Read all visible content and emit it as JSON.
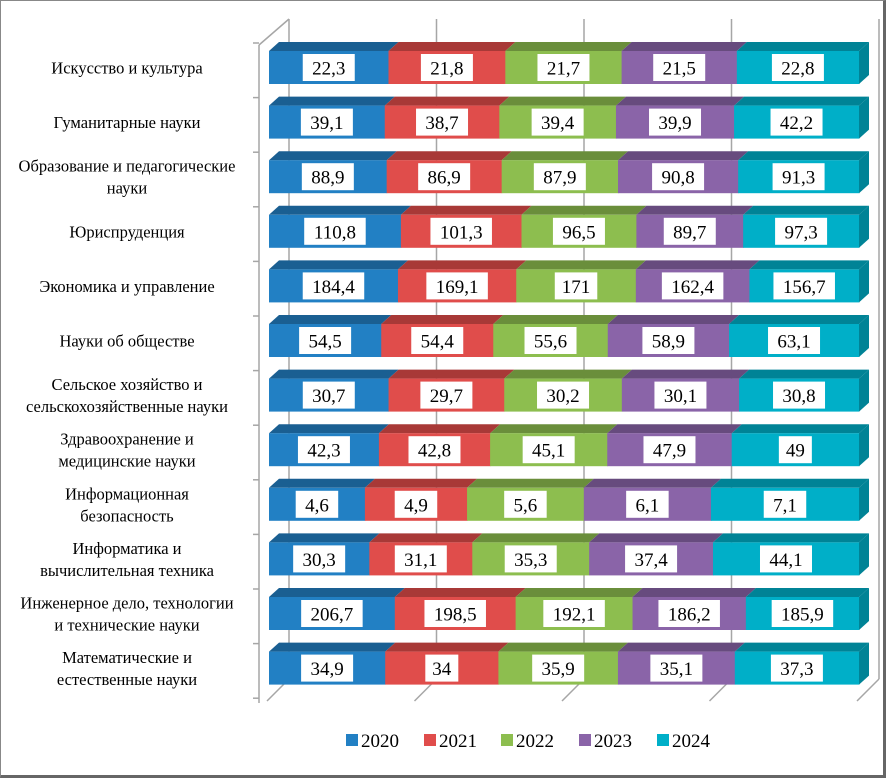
{
  "chart_data": {
    "type": "bar",
    "stacked": "percent",
    "orientation": "horizontal",
    "title": "",
    "xlabel": "",
    "ylabel": "",
    "xlim": [
      0,
      100
    ],
    "grid": true,
    "legend_position": "bottom",
    "categories": [
      "Искусство и культура",
      "Гуманитарные науки",
      "Образование и педагогические науки",
      "Юриспруденция",
      "Экономика и управление",
      "Науки об обществе",
      "Сельское хозяйство и сельскохозяйственные науки",
      "Здравоохранение и медицинские науки",
      "Информационная безопасность",
      "Информатика и вычислительная техника",
      "Инженерное дело, технологии и технические науки",
      "Математические и естественные науки"
    ],
    "category_lines": [
      [
        "Искусство и культура"
      ],
      [
        "Гуманитарные науки"
      ],
      [
        "Образование и педагогические",
        "науки"
      ],
      [
        "Юриспруденция"
      ],
      [
        "Экономика и управление"
      ],
      [
        "Науки об обществе"
      ],
      [
        "Сельское хозяйство и",
        "сельскохозяйственные науки"
      ],
      [
        "Здравоохранение и",
        "медицинские науки"
      ],
      [
        "Информационная",
        "безопасность"
      ],
      [
        "Информатика и",
        "вычислительная техника"
      ],
      [
        "Инженерное дело, технологии",
        "и технические науки"
      ],
      [
        "Математические и",
        "естественные науки"
      ]
    ],
    "series": [
      {
        "name": "2020",
        "color": "#2280C4",
        "top": "#1A5F92",
        "values": [
          22.3,
          39.1,
          88.9,
          110.8,
          184.4,
          54.5,
          30.7,
          42.3,
          4.6,
          30.3,
          206.7,
          34.9
        ],
        "labels": [
          "22,3",
          "39,1",
          "88,9",
          "110,8",
          "184,4",
          "54,5",
          "30,7",
          "42,3",
          "4,6",
          "30,3",
          "206,7",
          "34,9"
        ]
      },
      {
        "name": "2021",
        "color": "#E04D4B",
        "top": "#A83937",
        "values": [
          21.8,
          38.7,
          86.9,
          101.3,
          169.1,
          54.4,
          29.7,
          42.8,
          4.9,
          31.1,
          198.5,
          34
        ],
        "labels": [
          "21,8",
          "38,7",
          "86,9",
          "101,3",
          "169,1",
          "54,4",
          "29,7",
          "42,8",
          "4,9",
          "31,1",
          "198,5",
          "34"
        ]
      },
      {
        "name": "2022",
        "color": "#8DBE4F",
        "top": "#6A8E3B",
        "values": [
          21.7,
          39.4,
          87.9,
          96.5,
          171,
          55.6,
          30.2,
          45.1,
          5.6,
          35.3,
          192.1,
          35.9
        ],
        "labels": [
          "21,7",
          "39,4",
          "87,9",
          "96,5",
          "171",
          "55,6",
          "30,2",
          "45,1",
          "5,6",
          "35,3",
          "192,1",
          "35,9"
        ]
      },
      {
        "name": "2023",
        "color": "#8A64A8",
        "top": "#674B7E",
        "values": [
          21.5,
          39.9,
          90.8,
          89.7,
          162.4,
          58.9,
          30.1,
          47.9,
          6.1,
          37.4,
          186.2,
          35.1
        ],
        "labels": [
          "21,5",
          "39,9",
          "90,8",
          "89,7",
          "162,4",
          "58,9",
          "30,1",
          "47,9",
          "6,1",
          "37,4",
          "186,2",
          "35,1"
        ]
      },
      {
        "name": "2024",
        "color": "#00AFC8",
        "top": "#008396",
        "values": [
          22.8,
          42.2,
          91.3,
          97.3,
          156.7,
          63.1,
          30.8,
          49,
          7.1,
          44.1,
          185.9,
          37.3
        ],
        "labels": [
          "22,8",
          "42,2",
          "91,3",
          "97,3",
          "156,7",
          "63,1",
          "30,8",
          "49",
          "7,1",
          "44,1",
          "185,9",
          "37,3"
        ]
      }
    ]
  }
}
